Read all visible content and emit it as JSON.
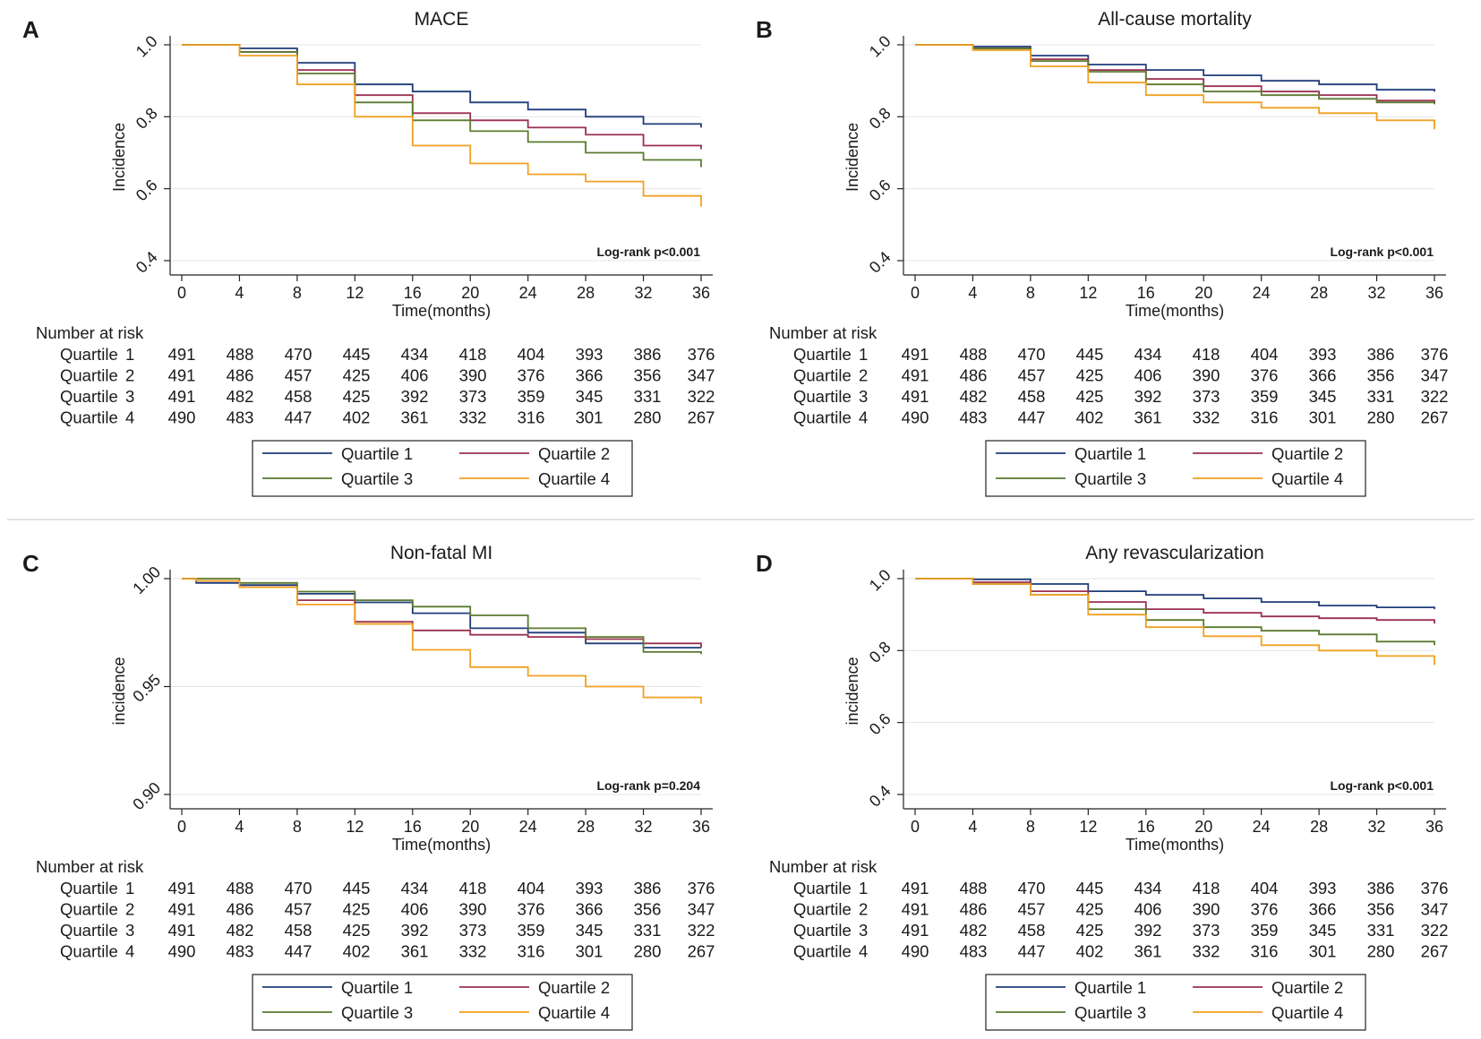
{
  "figure": {
    "divider_color": "#d0d0d0",
    "series_colors": {
      "Quartile 1": "#1f3c7a",
      "Quartile 2": "#9a3050",
      "Quartile 3": "#5a7a30",
      "Quartile 4": "#f0a020"
    }
  },
  "chart_data": [
    {
      "panel": "A",
      "type": "line",
      "title": "MACE",
      "xlabel": "Time(months)",
      "ylabel": "Incidence",
      "xlim": [
        0,
        36
      ],
      "ylim": [
        0.4,
        1.0
      ],
      "xticks": [
        0,
        4,
        8,
        12,
        16,
        20,
        24,
        28,
        32,
        36
      ],
      "xtick_labels": [
        "0",
        "4",
        "8",
        "12",
        "16",
        "20",
        "24",
        "28",
        "32",
        "36"
      ],
      "yticks": [
        0.4,
        0.6,
        0.8,
        1.0
      ],
      "ytick_labels": [
        "0.4",
        "0.6",
        "0.8",
        "1.0"
      ],
      "annotation": "Log-rank p<0.001",
      "series": [
        {
          "name": "Quartile 1",
          "x": [
            0,
            4,
            8,
            12,
            16,
            20,
            24,
            28,
            32,
            36
          ],
          "values": [
            1.0,
            0.99,
            0.95,
            0.89,
            0.87,
            0.84,
            0.82,
            0.8,
            0.78,
            0.77
          ]
        },
        {
          "name": "Quartile 2",
          "x": [
            0,
            4,
            8,
            12,
            16,
            20,
            24,
            28,
            32,
            36
          ],
          "values": [
            1.0,
            0.98,
            0.93,
            0.86,
            0.81,
            0.79,
            0.77,
            0.75,
            0.72,
            0.71
          ]
        },
        {
          "name": "Quartile 3",
          "x": [
            0,
            4,
            8,
            12,
            16,
            20,
            24,
            28,
            32,
            36
          ],
          "values": [
            1.0,
            0.98,
            0.92,
            0.84,
            0.79,
            0.76,
            0.73,
            0.7,
            0.68,
            0.66
          ]
        },
        {
          "name": "Quartile 4",
          "x": [
            0,
            4,
            8,
            12,
            16,
            20,
            24,
            28,
            32,
            36
          ],
          "values": [
            1.0,
            0.97,
            0.89,
            0.8,
            0.72,
            0.67,
            0.64,
            0.62,
            0.58,
            0.55
          ]
        }
      ],
      "risk_table": {
        "header": "Number at risk",
        "rows": [
          {
            "label": "Quartile",
            "num": "1",
            "counts": [
              "491",
              "488",
              "470",
              "445",
              "434",
              "418",
              "404",
              "393",
              "386",
              "376"
            ]
          },
          {
            "label": "Quartile",
            "num": "2",
            "counts": [
              "491",
              "486",
              "457",
              "425",
              "406",
              "390",
              "376",
              "366",
              "356",
              "347"
            ]
          },
          {
            "label": "Quartile",
            "num": "3",
            "counts": [
              "491",
              "482",
              "458",
              "425",
              "392",
              "373",
              "359",
              "345",
              "331",
              "322"
            ]
          },
          {
            "label": "Quartile",
            "num": "4",
            "counts": [
              "490",
              "483",
              "447",
              "402",
              "361",
              "332",
              "316",
              "301",
              "280",
              "267"
            ]
          }
        ]
      },
      "legend": [
        "Quartile  1",
        "Quartile  2",
        "Quartile  3",
        "Quartile  4"
      ]
    },
    {
      "panel": "B",
      "type": "line",
      "title": "All-cause mortality",
      "xlabel": "Time(months)",
      "ylabel": "Incidence",
      "xlim": [
        0,
        36
      ],
      "ylim": [
        0.4,
        1.0
      ],
      "xticks": [
        0,
        4,
        8,
        12,
        16,
        20,
        24,
        28,
        32,
        36
      ],
      "xtick_labels": [
        "0",
        "4",
        "8",
        "12",
        "16",
        "20",
        "24",
        "28",
        "32",
        "36"
      ],
      "yticks": [
        0.4,
        0.6,
        0.8,
        1.0
      ],
      "ytick_labels": [
        "0.4",
        "0.6",
        "0.8",
        "1.0"
      ],
      "annotation": "Log-rank p<0.001",
      "series": [
        {
          "name": "Quartile 1",
          "x": [
            0,
            4,
            8,
            12,
            16,
            20,
            24,
            28,
            32,
            36
          ],
          "values": [
            1.0,
            0.995,
            0.97,
            0.945,
            0.93,
            0.915,
            0.9,
            0.89,
            0.875,
            0.87
          ]
        },
        {
          "name": "Quartile 2",
          "x": [
            0,
            4,
            8,
            12,
            16,
            20,
            24,
            28,
            32,
            36
          ],
          "values": [
            1.0,
            0.99,
            0.96,
            0.93,
            0.905,
            0.885,
            0.87,
            0.86,
            0.845,
            0.835
          ]
        },
        {
          "name": "Quartile 3",
          "x": [
            0,
            4,
            8,
            12,
            16,
            20,
            24,
            28,
            32,
            36
          ],
          "values": [
            1.0,
            0.99,
            0.955,
            0.925,
            0.89,
            0.87,
            0.86,
            0.85,
            0.84,
            0.835
          ]
        },
        {
          "name": "Quartile 4",
          "x": [
            0,
            4,
            8,
            12,
            16,
            20,
            24,
            28,
            32,
            36
          ],
          "values": [
            1.0,
            0.985,
            0.94,
            0.895,
            0.86,
            0.84,
            0.825,
            0.81,
            0.79,
            0.765
          ]
        }
      ],
      "risk_table": {
        "header": "Number at risk",
        "rows": [
          {
            "label": "Quartile",
            "num": "1",
            "counts": [
              "491",
              "488",
              "470",
              "445",
              "434",
              "418",
              "404",
              "393",
              "386",
              "376"
            ]
          },
          {
            "label": "Quartile",
            "num": "2",
            "counts": [
              "491",
              "486",
              "457",
              "425",
              "406",
              "390",
              "376",
              "366",
              "356",
              "347"
            ]
          },
          {
            "label": "Quartile",
            "num": "3",
            "counts": [
              "491",
              "482",
              "458",
              "425",
              "392",
              "373",
              "359",
              "345",
              "331",
              "322"
            ]
          },
          {
            "label": "Quartile",
            "num": "4",
            "counts": [
              "490",
              "483",
              "447",
              "402",
              "361",
              "332",
              "316",
              "301",
              "280",
              "267"
            ]
          }
        ]
      },
      "legend": [
        "Quartile  1",
        "Quartile  2",
        "Quartile  3",
        "Quartile  4"
      ]
    },
    {
      "panel": "C",
      "type": "line",
      "title": "Non-fatal MI",
      "xlabel": "Time(months)",
      "ylabel": "incidence",
      "xlim": [
        0,
        36
      ],
      "ylim": [
        0.9,
        1.0
      ],
      "xticks": [
        0,
        4,
        8,
        12,
        16,
        20,
        24,
        28,
        32,
        36
      ],
      "xtick_labels": [
        "0",
        "4",
        "8",
        "12",
        "16",
        "20",
        "24",
        "28",
        "32",
        "36"
      ],
      "yticks": [
        0.9,
        0.95,
        1.0
      ],
      "ytick_labels": [
        "0.90",
        "0.95",
        "1.00"
      ],
      "annotation": "Log-rank p=0.204",
      "series": [
        {
          "name": "Quartile 1",
          "x": [
            0,
            1,
            4,
            8,
            12,
            16,
            20,
            24,
            28,
            32,
            36
          ],
          "values": [
            1.0,
            0.998,
            0.997,
            0.993,
            0.989,
            0.984,
            0.977,
            0.975,
            0.97,
            0.968,
            0.968
          ]
        },
        {
          "name": "Quartile 2",
          "x": [
            0,
            1,
            4,
            8,
            12,
            16,
            20,
            24,
            28,
            32,
            36
          ],
          "values": [
            1.0,
            0.999,
            0.996,
            0.99,
            0.98,
            0.976,
            0.974,
            0.973,
            0.972,
            0.97,
            0.968
          ]
        },
        {
          "name": "Quartile 3",
          "x": [
            0,
            1,
            4,
            8,
            12,
            16,
            20,
            24,
            28,
            32,
            36
          ],
          "values": [
            1.0,
            1.0,
            0.998,
            0.994,
            0.99,
            0.987,
            0.983,
            0.977,
            0.973,
            0.966,
            0.965
          ]
        },
        {
          "name": "Quartile 4",
          "x": [
            0,
            1,
            4,
            8,
            12,
            16,
            20,
            24,
            28,
            32,
            36
          ],
          "values": [
            1.0,
            0.999,
            0.996,
            0.988,
            0.979,
            0.967,
            0.959,
            0.955,
            0.95,
            0.945,
            0.942
          ]
        }
      ],
      "risk_table": {
        "header": "Number at risk",
        "rows": [
          {
            "label": "Quartile",
            "num": "1",
            "counts": [
              "491",
              "488",
              "470",
              "445",
              "434",
              "418",
              "404",
              "393",
              "386",
              "376"
            ]
          },
          {
            "label": "Quartile",
            "num": "2",
            "counts": [
              "491",
              "486",
              "457",
              "425",
              "406",
              "390",
              "376",
              "366",
              "356",
              "347"
            ]
          },
          {
            "label": "Quartile",
            "num": "3",
            "counts": [
              "491",
              "482",
              "458",
              "425",
              "392",
              "373",
              "359",
              "345",
              "331",
              "322"
            ]
          },
          {
            "label": "Quartile",
            "num": "4",
            "counts": [
              "490",
              "483",
              "447",
              "402",
              "361",
              "332",
              "316",
              "301",
              "280",
              "267"
            ]
          }
        ]
      },
      "legend": [
        "Quartile  1",
        "Quartile  2",
        "Quartile  3",
        "Quartile  4"
      ]
    },
    {
      "panel": "D",
      "type": "line",
      "title": "Any revascularization",
      "xlabel": "Time(months)",
      "ylabel": "incidence",
      "xlim": [
        0,
        36
      ],
      "ylim": [
        0.4,
        1.0
      ],
      "xticks": [
        0,
        4,
        8,
        12,
        16,
        20,
        24,
        28,
        32,
        36
      ],
      "xtick_labels": [
        "0",
        "4",
        "8",
        "12",
        "16",
        "20",
        "24",
        "28",
        "32",
        "36"
      ],
      "yticks": [
        0.4,
        0.6,
        0.8,
        1.0
      ],
      "ytick_labels": [
        "0.4",
        "0.6",
        "0.8",
        "1.0"
      ],
      "annotation": "Log-rank p<0.001",
      "series": [
        {
          "name": "Quartile 1",
          "x": [
            0,
            4,
            8,
            12,
            16,
            20,
            24,
            28,
            32,
            36
          ],
          "values": [
            1.0,
            0.998,
            0.985,
            0.965,
            0.955,
            0.945,
            0.935,
            0.925,
            0.92,
            0.915
          ]
        },
        {
          "name": "Quartile 2",
          "x": [
            0,
            4,
            8,
            12,
            16,
            20,
            24,
            28,
            32,
            36
          ],
          "values": [
            1.0,
            0.99,
            0.965,
            0.935,
            0.915,
            0.905,
            0.895,
            0.89,
            0.885,
            0.875
          ]
        },
        {
          "name": "Quartile 3",
          "x": [
            0,
            4,
            8,
            12,
            16,
            20,
            24,
            28,
            32,
            36
          ],
          "values": [
            1.0,
            0.985,
            0.955,
            0.915,
            0.885,
            0.865,
            0.855,
            0.845,
            0.825,
            0.815
          ]
        },
        {
          "name": "Quartile 4",
          "x": [
            0,
            4,
            8,
            12,
            16,
            20,
            24,
            28,
            32,
            36
          ],
          "values": [
            1.0,
            0.985,
            0.955,
            0.9,
            0.865,
            0.84,
            0.815,
            0.8,
            0.785,
            0.76
          ]
        }
      ],
      "risk_table": {
        "header": "Number at risk",
        "rows": [
          {
            "label": "Quartile",
            "num": "1",
            "counts": [
              "491",
              "488",
              "470",
              "445",
              "434",
              "418",
              "404",
              "393",
              "386",
              "376"
            ]
          },
          {
            "label": "Quartile",
            "num": "2",
            "counts": [
              "491",
              "486",
              "457",
              "425",
              "406",
              "390",
              "376",
              "366",
              "356",
              "347"
            ]
          },
          {
            "label": "Quartile",
            "num": "3",
            "counts": [
              "491",
              "482",
              "458",
              "425",
              "392",
              "373",
              "359",
              "345",
              "331",
              "322"
            ]
          },
          {
            "label": "Quartile",
            "num": "4",
            "counts": [
              "490",
              "483",
              "447",
              "402",
              "361",
              "332",
              "316",
              "301",
              "280",
              "267"
            ]
          }
        ]
      },
      "legend": [
        "Quartile  1",
        "Quartile  2",
        "Quartile  3",
        "Quartile  4"
      ]
    }
  ]
}
